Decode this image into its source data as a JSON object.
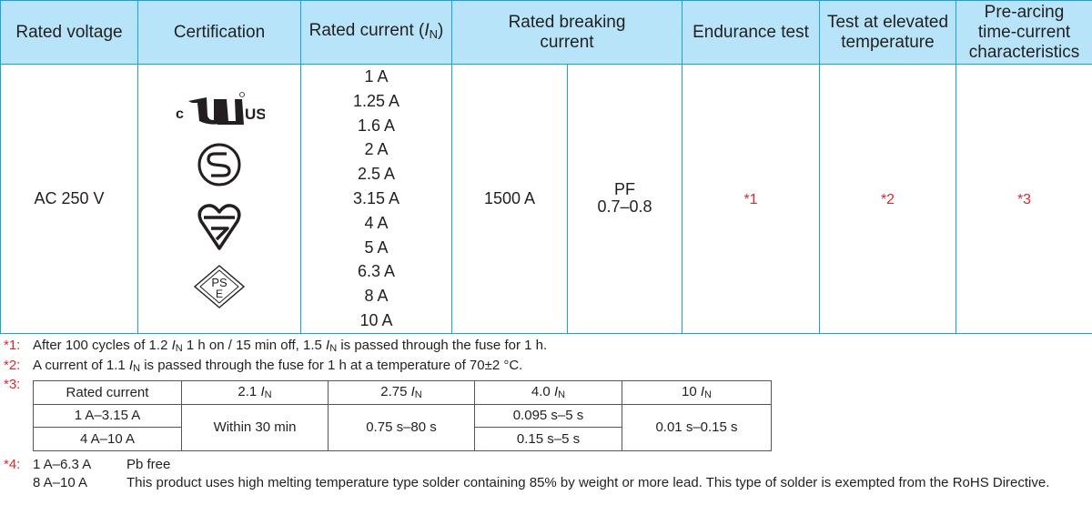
{
  "header": {
    "rated_voltage": "Rated voltage",
    "certification": "Certification",
    "rated_current_prefix": "Rated current (",
    "rated_current_I": "I",
    "rated_current_sub": "N",
    "rated_current_suffix": ")",
    "rated_breaking_line1": "Rated breaking",
    "rated_breaking_line2": "current",
    "endurance_test": "Endurance test",
    "elevated_line1": "Test at elevated",
    "elevated_line2": "temperature",
    "prearcing_line1": "Pre-arcing",
    "prearcing_line2": "time-current",
    "prearcing_line3": "characteristics"
  },
  "row": {
    "voltage": "AC 250 V",
    "certification_icons": [
      "cul-us-icon",
      "s-mark-icon",
      "kitemark-icon",
      "pse-icon"
    ],
    "cul_text_c": "c",
    "cul_text_us": "US",
    "pse_text_ps": "PS",
    "pse_text_e": "E",
    "currents": [
      "1 A",
      "1.25 A",
      "1.6 A",
      "2 A",
      "2.5 A",
      "3.15 A",
      "4 A",
      "5 A",
      "6.3 A",
      "8 A",
      "10 A"
    ],
    "breaking_current": "1500 A",
    "pf_label": "PF",
    "pf_value": "0.7–0.8",
    "endurance_ref": "*1",
    "elevated_ref": "*2",
    "prearcing_ref": "*3"
  },
  "notes": {
    "n1_mark": "*1:",
    "n1_a": "After 100 cycles of 1.2 ",
    "n1_b": " 1 h on / 15 min off, 1.5 ",
    "n1_c": " is passed through the fuse for 1 h.",
    "n2_mark": "*2:",
    "n2_a": "A current of 1.1 ",
    "n2_b": " is passed through the fuse for 1 h at a temperature of 70±2 °C.",
    "n3_mark": "*3:",
    "n4_mark": "*4:",
    "n4_rows": [
      {
        "range": "1 A–6.3 A",
        "desc": "Pb free"
      },
      {
        "range": "8 A–10 A",
        "desc": "This product uses high melting temperature type solder containing 85% by weight or more lead. This type of solder is exempted from the RoHS Directive."
      }
    ],
    "I": "I",
    "N": "N"
  },
  "table3": {
    "header_label": "Rated current",
    "col1_factor": "2.1 ",
    "col2_factor": "2.75 ",
    "col3_factor": "4.0 ",
    "col4_factor": "10 ",
    "row1_label": "1 A–3.15 A",
    "row2_label": "4 A–10 A",
    "col1_value": "Within 30 min",
    "col2_value": "0.75 s–80 s",
    "col3_row1": "0.095 s–5 s",
    "col3_row2": "0.15 s–5 s",
    "col4_value": "0.01 s–0.15 s"
  },
  "colors": {
    "header_bg": "#b7e4f8",
    "border": "#1aa3d9",
    "note_mark": "#e0262e"
  }
}
